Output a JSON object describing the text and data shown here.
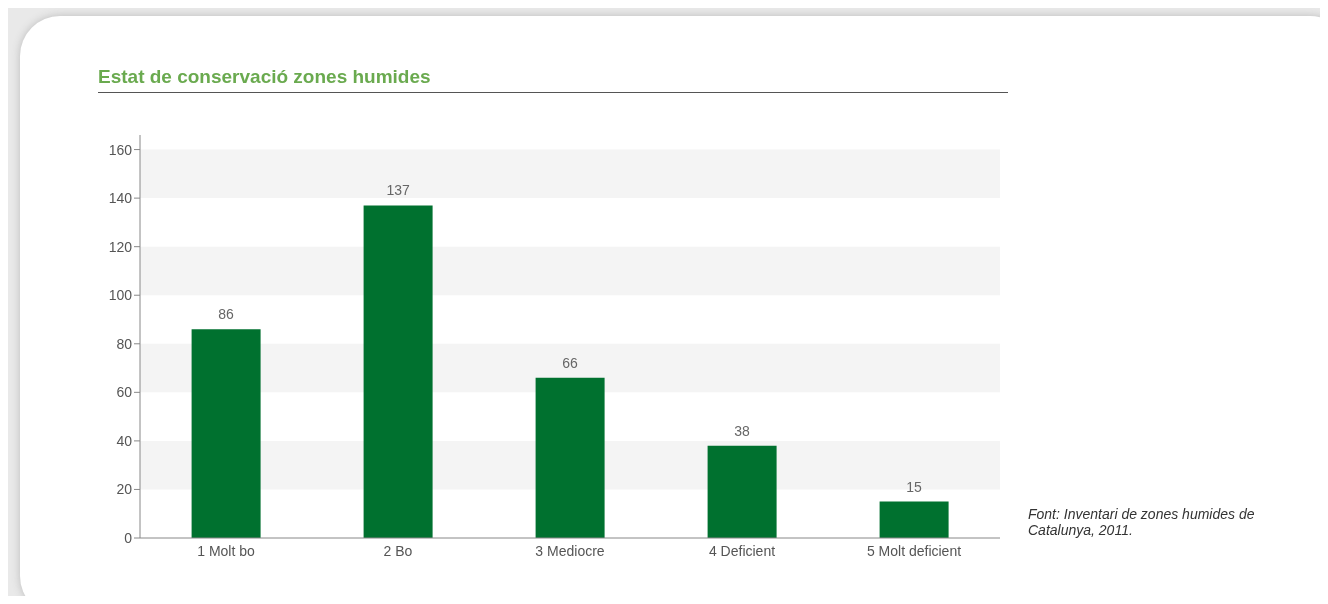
{
  "chart_data": {
    "type": "bar",
    "title": "Estat de conservació zones humides",
    "categories": [
      "1 Molt bo",
      "2 Bo",
      "3 Mediocre",
      "4 Deficient",
      "5 Molt deficient"
    ],
    "values": [
      86,
      137,
      66,
      38,
      15
    ],
    "color": "#00712f",
    "ylim": [
      0,
      166
    ],
    "yticks": [
      0,
      20,
      40,
      60,
      80,
      100,
      120,
      140,
      160
    ],
    "grid": false,
    "data_labels": true,
    "bands": [
      {
        "axis": "y",
        "from": 20,
        "to": 40,
        "color": "#f4f4f4"
      },
      {
        "axis": "y",
        "from": 60,
        "to": 80,
        "color": "#f4f4f4"
      },
      {
        "axis": "y",
        "from": 100,
        "to": 120,
        "color": "#f4f4f4"
      },
      {
        "axis": "y",
        "from": 140,
        "to": 160,
        "color": "#f4f4f4"
      }
    ],
    "annotations": [
      "Font: Inventari de zones humides de Catalunya, 2011."
    ]
  }
}
